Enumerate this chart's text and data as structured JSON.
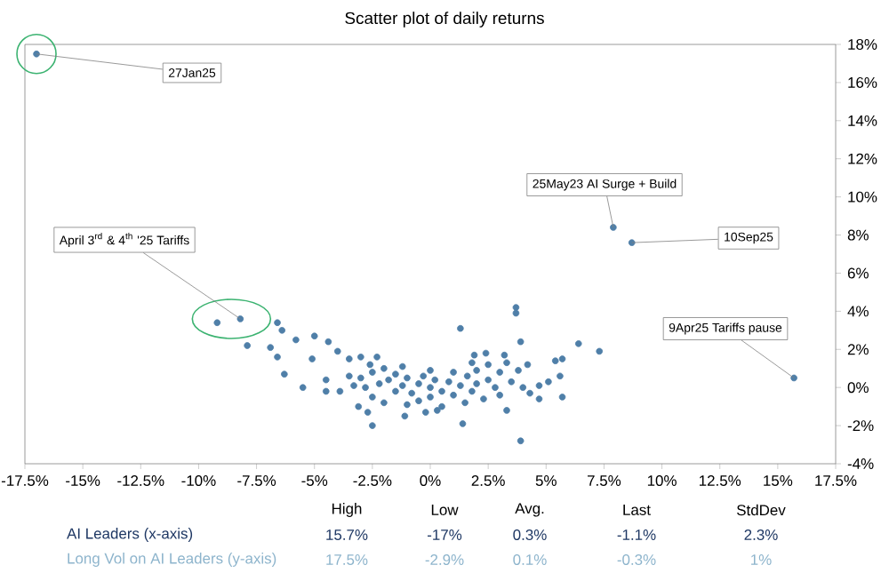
{
  "chart_data": {
    "type": "scatter",
    "title": "Scatter plot of daily returns",
    "x": [
      -17,
      -9.2,
      -8.2,
      7.9,
      8.7,
      15.7,
      -6.6,
      -6.4,
      -7.9,
      -6.9,
      -5.8,
      -6.6,
      -6.3,
      -5.5,
      -5.0,
      -5.1,
      -4.5,
      -4.5,
      -4.4,
      -4.0,
      -3.5,
      -3.0,
      -2.5,
      -2.3,
      -1.1,
      1.3,
      1.4,
      3.7,
      3.7,
      3.9,
      3.9,
      3.3,
      4.3,
      4.7,
      5.4,
      5.7,
      6.4,
      7.3,
      5.6,
      5.7,
      5.1,
      4.7,
      2.4,
      3.2,
      1.9,
      -3.9,
      -3.1,
      -2.7,
      -3,
      -2.8,
      -2.5,
      -2.5,
      -2.2,
      -2,
      -2,
      -1.8,
      -1.5,
      -1.5,
      -1.2,
      -1.0,
      -1,
      -0.8,
      -0.5,
      -0.5,
      -0.3,
      0,
      0,
      0.2,
      0.5,
      0.5,
      0.8,
      1,
      1,
      1.3,
      1.5,
      1.6,
      1.8,
      2,
      2,
      2.3,
      2.5,
      2.5,
      2.8,
      3,
      3,
      3.3,
      3.5,
      3.8,
      4,
      4.2,
      -3.3,
      -3.5,
      -2.6,
      1.8,
      0,
      -1.2,
      0.3,
      -0.2
    ],
    "values": [
      17.5,
      3.4,
      3.6,
      8.4,
      7.6,
      0.5,
      3.4,
      3.0,
      2.2,
      2.1,
      2.5,
      1.6,
      0.7,
      0,
      2.7,
      1.5,
      -0.2,
      0.4,
      2.4,
      1.9,
      1.5,
      1.6,
      -2.0,
      1.6,
      -1.5,
      3.1,
      -1.9,
      4.2,
      3.9,
      -2.8,
      2.4,
      -1.2,
      -0.3,
      -0.6,
      1.4,
      1.5,
      2.3,
      1.9,
      0.6,
      -0.5,
      0.3,
      0.1,
      1.8,
      1.7,
      1.7,
      -0.2,
      -1.0,
      -1.3,
      0.5,
      0.0,
      0.8,
      -0.5,
      0.2,
      1.0,
      -0.8,
      0.4,
      -0.2,
      0.7,
      0.1,
      -0.9,
      0.5,
      -0.3,
      0.2,
      -0.7,
      0.6,
      0,
      -0.5,
      0.4,
      -0.2,
      -1.0,
      0.3,
      0.8,
      -0.4,
      0.1,
      -0.8,
      0.6,
      -0.2,
      0.9,
      0.2,
      -0.6,
      0.4,
      1.2,
      0.0,
      0.8,
      -0.4,
      1.3,
      0.3,
      0.9,
      0.0,
      1.2,
      0.1,
      0.6,
      1.2,
      1.3,
      0.9,
      1.1,
      -1.2,
      -1.3
    ],
    "color": "#4f7fa8",
    "marker": "circle",
    "grid": false,
    "xlim": [
      -17.5,
      17.5
    ],
    "xticks": [
      {
        "value": -17.5,
        "label": "-17.5%"
      },
      {
        "value": -15,
        "label": "-15%"
      },
      {
        "value": -12.5,
        "label": "-12.5%"
      },
      {
        "value": -10,
        "label": "-10%"
      },
      {
        "value": -7.5,
        "label": "-7.5%"
      },
      {
        "value": -5,
        "label": "-5%"
      },
      {
        "value": -2.5,
        "label": "-2.5%"
      },
      {
        "value": 0,
        "label": "0%"
      },
      {
        "value": 2.5,
        "label": "2.5%"
      },
      {
        "value": 5,
        "label": "5%"
      },
      {
        "value": 7.5,
        "label": "7.5%"
      },
      {
        "value": 10,
        "label": "10%"
      },
      {
        "value": 12.5,
        "label": "12.5%"
      },
      {
        "value": 15,
        "label": "15%"
      },
      {
        "value": 17.5,
        "label": "17.5%"
      }
    ],
    "ylim": [
      -4,
      18
    ],
    "yticks": [
      {
        "value": -4,
        "label": "-4%"
      },
      {
        "value": -2,
        "label": "-2%"
      },
      {
        "value": 0,
        "label": "0%"
      },
      {
        "value": 2,
        "label": "2%"
      },
      {
        "value": 4,
        "label": "4%"
      },
      {
        "value": 6,
        "label": "6%"
      },
      {
        "value": 8,
        "label": "8%"
      },
      {
        "value": 10,
        "label": "10%"
      },
      {
        "value": 12,
        "label": "12%"
      },
      {
        "value": 14,
        "label": "14%"
      },
      {
        "value": 16,
        "label": "16%"
      },
      {
        "value": 18,
        "label": "18%"
      }
    ],
    "annotations": [
      {
        "text": "27Jan25",
        "x": -17,
        "y": 17.5
      },
      {
        "text": "April 3$^{rd}$ & 4$^{th}$ '25 Tariffs",
        "x": -8.2,
        "y": 3.6
      },
      {
        "text": "25May23 AI Surge + Build",
        "x": 7.9,
        "y": 8.4
      },
      {
        "text": "10Sep25",
        "x": 8.7,
        "y": 7.6
      },
      {
        "text": "9Apr25 Tariffs pause",
        "x": 15.7,
        "y": 0.5
      },
      "High",
      "Low",
      "Avg.",
      "Last",
      "StdDev",
      "AI Leaders (x-axis)",
      "15.7%",
      "-17%",
      "0.3%",
      "-1.1%",
      "2.3%",
      "Long Vol on AI Leaders (y-axis)",
      "17.5%",
      "-2.9%",
      "0.1%",
      "-0.3%",
      "1%"
    ]
  }
}
